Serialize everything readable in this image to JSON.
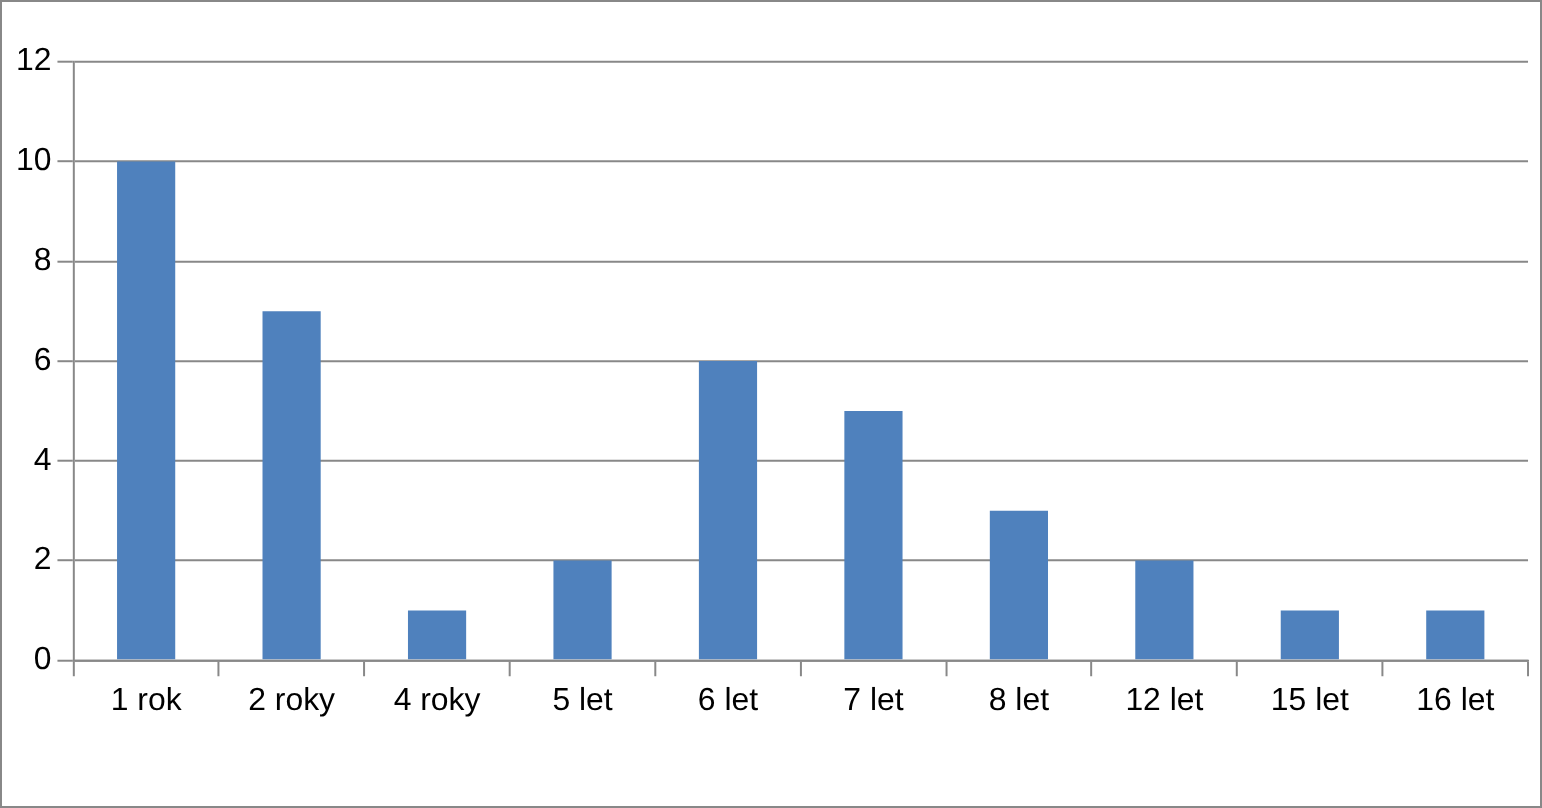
{
  "chart_data": {
    "type": "bar",
    "categories": [
      "1 rok",
      "2 roky",
      "4 roky",
      "5 let",
      "6 let",
      "7 let",
      "8 let",
      "12 let",
      "15 let",
      "16 let"
    ],
    "values": [
      10,
      7,
      1,
      2,
      6,
      5,
      3,
      2,
      1,
      1
    ],
    "color": "#4f81bd",
    "ylim": [
      0,
      12
    ],
    "yticks": [
      0,
      2,
      4,
      6,
      8,
      10,
      12
    ],
    "grid": "y",
    "legend": false
  }
}
